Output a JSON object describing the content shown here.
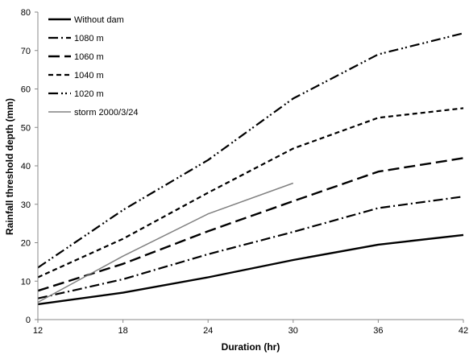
{
  "chart_data": {
    "type": "line",
    "xlabel": "Duration (hr)",
    "ylabel": "Rainfall threshold depth (mm)",
    "xlim": [
      12,
      42
    ],
    "ylim": [
      0,
      80
    ],
    "x_ticks": [
      "12",
      "18",
      "24",
      "30",
      "36",
      "42"
    ],
    "y_ticks": [
      "0",
      "10",
      "20",
      "30",
      "40",
      "50",
      "60",
      "70",
      "80"
    ],
    "grid": false,
    "legend_position": "top-left",
    "series": [
      {
        "name": "Without dam",
        "color": "#000000",
        "style": "solid",
        "x": [
          12,
          18,
          24,
          30,
          36,
          42
        ],
        "y": [
          4.0,
          7.0,
          11.0,
          15.5,
          19.5,
          22.0
        ]
      },
      {
        "name": "1080 m",
        "color": "#000000",
        "style": "dash-dot",
        "x": [
          12,
          18,
          24,
          30,
          36,
          42
        ],
        "y": [
          5.5,
          10.5,
          17.0,
          22.8,
          29.0,
          32.0
        ]
      },
      {
        "name": "1060 m",
        "color": "#000000",
        "style": "long-dash",
        "x": [
          12,
          18,
          24,
          30,
          36,
          42
        ],
        "y": [
          7.5,
          14.5,
          23.0,
          30.8,
          38.5,
          42.0
        ]
      },
      {
        "name": "1040 m",
        "color": "#000000",
        "style": "short-dash",
        "x": [
          12,
          18,
          24,
          30,
          36,
          42
        ],
        "y": [
          11.0,
          21.0,
          33.0,
          44.5,
          52.5,
          55.0
        ]
      },
      {
        "name": "1020 m",
        "color": "#000000",
        "style": "dash-dot-dot",
        "x": [
          12,
          18,
          24,
          30,
          36,
          42
        ],
        "y": [
          13.5,
          28.5,
          41.5,
          57.5,
          69.0,
          74.5
        ]
      },
      {
        "name": "storm 2000/3/24",
        "color": "#808080",
        "style": "solid-thin",
        "x": [
          12,
          18,
          24,
          30
        ],
        "y": [
          4.5,
          16.5,
          27.5,
          35.5
        ]
      }
    ]
  }
}
